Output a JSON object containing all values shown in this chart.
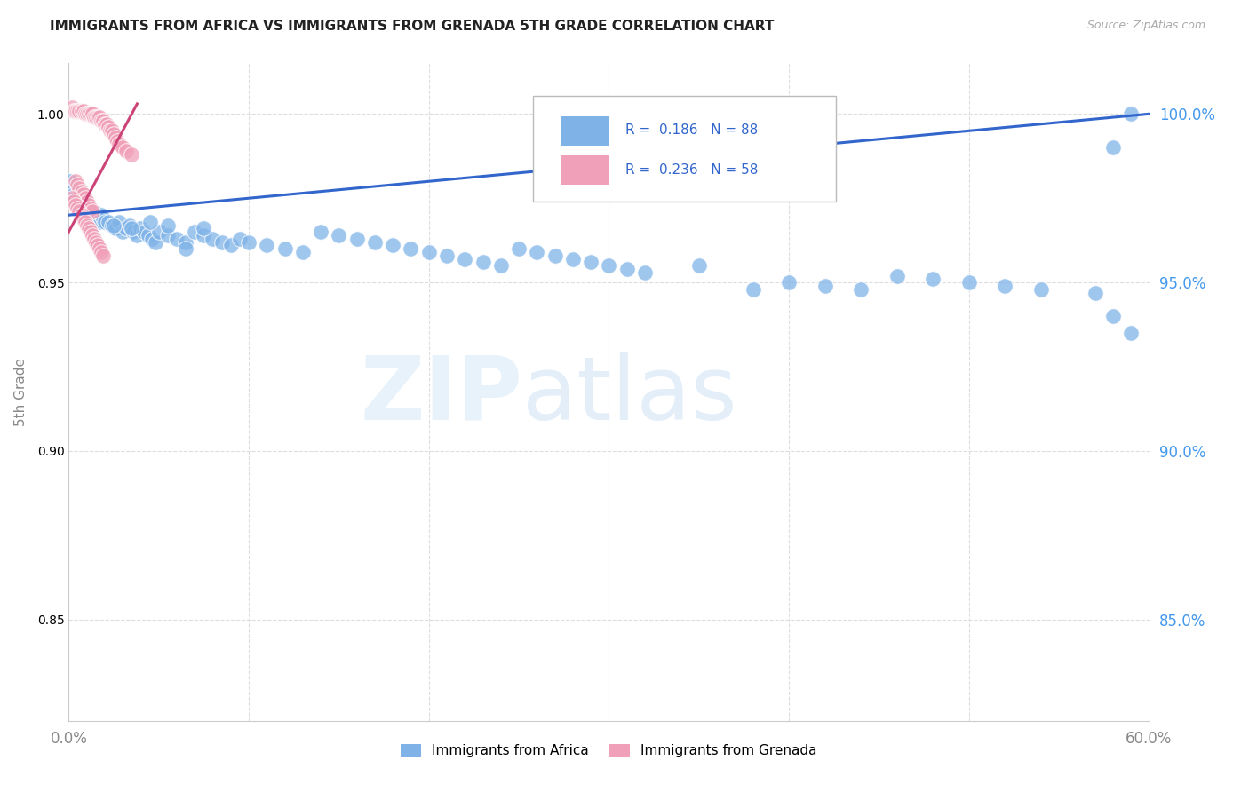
{
  "title": "IMMIGRANTS FROM AFRICA VS IMMIGRANTS FROM GRENADA 5TH GRADE CORRELATION CHART",
  "source": "Source: ZipAtlas.com",
  "ylabel": "5th Grade",
  "legend_label1": "Immigrants from Africa",
  "legend_label2": "Immigrants from Grenada",
  "R1": 0.186,
  "N1": 88,
  "R2": 0.236,
  "N2": 58,
  "xlim": [
    0.0,
    0.6
  ],
  "ylim": [
    0.82,
    1.015
  ],
  "xticks": [
    0.0,
    0.1,
    0.2,
    0.3,
    0.4,
    0.5,
    0.6
  ],
  "xticklabels": [
    "0.0%",
    "",
    "",
    "",
    "",
    "",
    "60.0%"
  ],
  "yticks": [
    0.85,
    0.9,
    0.95,
    1.0
  ],
  "yticklabels": [
    "85.0%",
    "90.0%",
    "95.0%",
    "100.0%"
  ],
  "color_africa": "#7fb3e8",
  "color_grenada": "#f0a0b8",
  "color_africa_line": "#3366cc",
  "color_grenada_line": "#cc4477",
  "background_color": "#ffffff",
  "grid_color": "#dddddd",
  "watermark_zip": "ZIP",
  "watermark_atlas": "atlas",
  "africa_x": [
    0.001,
    0.002,
    0.003,
    0.004,
    0.005,
    0.006,
    0.007,
    0.008,
    0.009,
    0.01,
    0.011,
    0.012,
    0.013,
    0.014,
    0.015,
    0.016,
    0.017,
    0.018,
    0.019,
    0.02,
    0.022,
    0.024,
    0.026,
    0.028,
    0.03,
    0.032,
    0.034,
    0.036,
    0.038,
    0.04,
    0.042,
    0.044,
    0.046,
    0.048,
    0.05,
    0.055,
    0.06,
    0.065,
    0.07,
    0.075,
    0.08,
    0.085,
    0.09,
    0.095,
    0.1,
    0.11,
    0.12,
    0.13,
    0.14,
    0.15,
    0.16,
    0.17,
    0.18,
    0.19,
    0.2,
    0.21,
    0.22,
    0.23,
    0.24,
    0.25,
    0.26,
    0.27,
    0.28,
    0.29,
    0.3,
    0.31,
    0.32,
    0.35,
    0.38,
    0.4,
    0.42,
    0.44,
    0.46,
    0.48,
    0.5,
    0.52,
    0.54,
    0.57,
    0.58,
    0.59,
    0.025,
    0.035,
    0.045,
    0.055,
    0.065,
    0.075,
    0.59,
    0.58
  ],
  "africa_y": [
    0.98,
    0.978,
    0.976,
    0.975,
    0.974,
    0.973,
    0.972,
    0.974,
    0.973,
    0.972,
    0.971,
    0.97,
    0.969,
    0.971,
    0.97,
    0.969,
    0.968,
    0.97,
    0.969,
    0.968,
    0.968,
    0.967,
    0.966,
    0.968,
    0.965,
    0.966,
    0.967,
    0.965,
    0.964,
    0.966,
    0.965,
    0.964,
    0.963,
    0.962,
    0.965,
    0.964,
    0.963,
    0.962,
    0.965,
    0.964,
    0.963,
    0.962,
    0.961,
    0.963,
    0.962,
    0.961,
    0.96,
    0.959,
    0.965,
    0.964,
    0.963,
    0.962,
    0.961,
    0.96,
    0.959,
    0.958,
    0.957,
    0.956,
    0.955,
    0.96,
    0.959,
    0.958,
    0.957,
    0.956,
    0.955,
    0.954,
    0.953,
    0.955,
    0.948,
    0.95,
    0.949,
    0.948,
    0.952,
    0.951,
    0.95,
    0.949,
    0.948,
    0.947,
    0.94,
    0.935,
    0.967,
    0.966,
    0.968,
    0.967,
    0.96,
    0.966,
    1.0,
    0.99
  ],
  "grenada_x": [
    0.002,
    0.003,
    0.004,
    0.005,
    0.006,
    0.007,
    0.008,
    0.009,
    0.01,
    0.011,
    0.012,
    0.013,
    0.014,
    0.015,
    0.016,
    0.017,
    0.018,
    0.019,
    0.02,
    0.021,
    0.022,
    0.023,
    0.024,
    0.025,
    0.026,
    0.027,
    0.028,
    0.03,
    0.032,
    0.035,
    0.004,
    0.005,
    0.006,
    0.007,
    0.008,
    0.009,
    0.01,
    0.011,
    0.012,
    0.013,
    0.002,
    0.003,
    0.004,
    0.005,
    0.006,
    0.007,
    0.008,
    0.009,
    0.01,
    0.011,
    0.012,
    0.013,
    0.014,
    0.015,
    0.016,
    0.017,
    0.018,
    0.019
  ],
  "grenada_y": [
    1.002,
    1.001,
    1.001,
    1.001,
    1.001,
    1.001,
    1.001,
    1.0,
    1.0,
    1.0,
    1.0,
    1.0,
    0.999,
    0.999,
    0.999,
    0.999,
    0.998,
    0.998,
    0.997,
    0.997,
    0.996,
    0.995,
    0.995,
    0.994,
    0.993,
    0.992,
    0.991,
    0.99,
    0.989,
    0.988,
    0.98,
    0.979,
    0.978,
    0.977,
    0.976,
    0.975,
    0.974,
    0.973,
    0.972,
    0.971,
    0.975,
    0.974,
    0.973,
    0.972,
    0.971,
    0.97,
    0.969,
    0.968,
    0.967,
    0.966,
    0.965,
    0.964,
    0.963,
    0.962,
    0.961,
    0.96,
    0.959,
    0.958
  ]
}
